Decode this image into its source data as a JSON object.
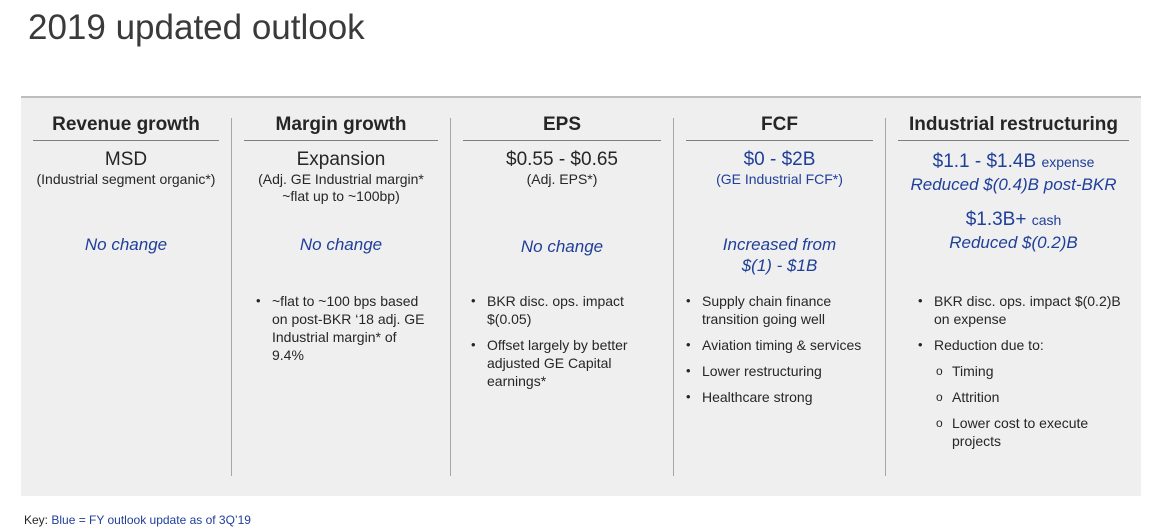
{
  "title": "2019 updated outlook",
  "columns": [
    {
      "header": "Revenue growth",
      "metric": "MSD",
      "sub": "(Industrial segment organic*)",
      "status": "No change",
      "bullets": []
    },
    {
      "header": "Margin growth",
      "metric": "Expansion",
      "sub": "(Adj. GE Industrial margin*\n~flat up to ~100bp)",
      "status": "No change",
      "bullets": [
        "~flat to ~100 bps based on post-BKR ‘18 adj. GE Industrial margin* of 9.4%"
      ]
    },
    {
      "header": "EPS",
      "metric": "$0.55 - $0.65",
      "sub": "(Adj. EPS*)",
      "status": "No change",
      "bullets": [
        "BKR disc. ops. impact $(0.05)",
        "Offset largely by better adjusted GE Capital earnings*"
      ]
    },
    {
      "header": "FCF",
      "metric": "$0 - $2B",
      "sub": "(GE Industrial FCF*)",
      "status": "Increased from\n$(1) - $1B",
      "bullets": [
        "Supply chain finance transition going well",
        "Aviation timing & services",
        "Lower restructuring",
        "Healthcare strong"
      ]
    },
    {
      "header": "Industrial restructuring",
      "expense_value": "$1.1 - $1.4B",
      "expense_label": "expense",
      "expense_note": "Reduced $(0.4)B post-BKR",
      "cash_value": "$1.3B+",
      "cash_label": "cash",
      "cash_note": "Reduced $(0.2)B",
      "bullets": [
        "BKR disc. ops. impact $(0.2)B on expense",
        "Reduction due to:"
      ],
      "sub_bullets": [
        "Timing",
        "Attrition",
        "Lower cost to execute projects"
      ]
    }
  ],
  "footer": {
    "key_label": "Key:",
    "key_text": "Blue = FY outlook update as of 3Q’19"
  }
}
